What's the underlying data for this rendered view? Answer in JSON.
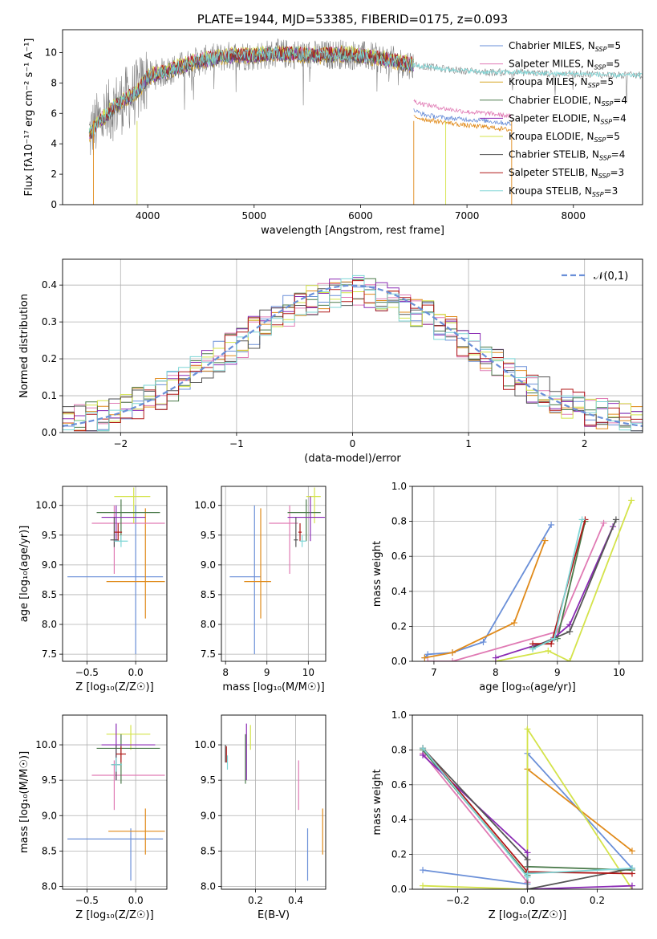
{
  "chart_data": [
    {
      "id": "spectrum",
      "type": "line",
      "title": "PLATE=1944, MJD=53385, FIBERID=0175, z=0.093",
      "xlabel": "wavelength [Angstrom, rest frame]",
      "ylabel": "Flux [fλ10⁻¹⁷ erg cm⁻² s⁻¹ A⁻¹]",
      "xlim": [
        3200,
        8650
      ],
      "ylim": [
        0,
        11.5
      ],
      "xticks": [
        4000,
        5000,
        6000,
        7000,
        8000
      ],
      "yticks": [
        0,
        2,
        4,
        6,
        8,
        10
      ],
      "grid": false,
      "legend_position": "top-right",
      "observed_color": "#808080",
      "legend": [
        {
          "label": "Chabrier MILES, N",
          "sub": "SSP",
          "suffix": "=5",
          "color": "#6a8fd8"
        },
        {
          "label": "Salpeter MILES, N",
          "sub": "SSP",
          "suffix": "=5",
          "color": "#e07ab4"
        },
        {
          "label": "Kroupa MILES, N",
          "sub": "SSP",
          "suffix": "=5",
          "color": "#d7a72a"
        },
        {
          "label": "Chabrier ELODIE, N",
          "sub": "SSP",
          "suffix": "=4",
          "color": "#4a7a4a"
        },
        {
          "label": "Salpeter ELODIE, N",
          "sub": "SSP",
          "suffix": "=4",
          "color": "#8a2ab4"
        },
        {
          "label": "Kroupa ELODIE, N",
          "sub": "SSP",
          "suffix": "=5",
          "color": "#d4e34a"
        },
        {
          "label": "Chabrier STELIB, N",
          "sub": "SSP",
          "suffix": "=4",
          "color": "#555555"
        },
        {
          "label": "Salpeter STELIB, N",
          "sub": "SSP",
          "suffix": "=3",
          "color": "#b01818"
        },
        {
          "label": "Kroupa STELIB, N",
          "sub": "SSP",
          "suffix": "=3",
          "color": "#7ed6d6"
        }
      ],
      "model_continuum": {
        "x": [
          3450,
          3550,
          3700,
          3900,
          4000,
          4200,
          4400,
          4600,
          4800,
          5000,
          5200,
          5400,
          5600,
          5800,
          6000,
          6200,
          6400,
          6500
        ],
        "y": [
          4.6,
          5.5,
          6.5,
          7.4,
          8.4,
          8.8,
          9.3,
          9.6,
          9.8,
          9.8,
          9.9,
          9.9,
          9.8,
          9.9,
          9.8,
          9.6,
          9.3,
          9.2
        ]
      },
      "model_red_tails": [
        {
          "name": "Chabrier MILES",
          "color": "#6a8fd8",
          "x": [
            6500,
            6600,
            6800,
            7000,
            7200,
            7420
          ],
          "y": [
            6.2,
            5.9,
            5.7,
            5.6,
            5.5,
            5.3
          ]
        },
        {
          "name": "Salpeter MILES",
          "color": "#e07ab4",
          "x": [
            6500,
            6600,
            6800,
            7000,
            7200,
            7420
          ],
          "y": [
            6.8,
            6.6,
            6.3,
            6.1,
            6.0,
            5.8
          ]
        },
        {
          "name": "Kroupa MILES",
          "color": "#e08a1a",
          "x": [
            6500,
            6600,
            6800,
            7000,
            7200,
            7420
          ],
          "y": [
            5.8,
            5.6,
            5.4,
            5.2,
            5.1,
            4.9
          ]
        },
        {
          "name": "STELIB / ELODIE",
          "color": "#7ed6d6",
          "x": [
            6500,
            6800,
            7000,
            7200,
            7500,
            7800,
            8100,
            8400,
            8650
          ],
          "y": [
            9.2,
            8.9,
            8.8,
            8.7,
            8.7,
            8.6,
            8.6,
            8.5,
            8.5
          ]
        }
      ]
    },
    {
      "id": "residuals",
      "type": "histogram",
      "xlabel": "(data-model)/error",
      "ylabel": "Normed distribution",
      "xlim": [
        -2.5,
        2.5
      ],
      "ylim": [
        0,
        0.47
      ],
      "xticks": [
        -2,
        -1,
        0,
        1,
        2
      ],
      "yticks": [
        0.0,
        0.1,
        0.2,
        0.3,
        0.4
      ],
      "grid": true,
      "legend_position": "top-right",
      "reference": {
        "label": "𝒩(0,1)",
        "color": "#6a8fd8",
        "style": "dashed"
      },
      "bin_width": 0.1,
      "series_colors": [
        "#6a8fd8",
        "#e07ab4",
        "#e08a1a",
        "#4a7a4a",
        "#8a2ab4",
        "#d4e34a",
        "#555555",
        "#b01818",
        "#7ed6d6"
      ]
    },
    {
      "id": "age-vs-z",
      "type": "scatter",
      "xlabel": "Z [log₁₀(Z/Z☉)]",
      "ylabel": "age  [log₁₀(age/yr)]",
      "xlim": [
        -0.75,
        0.32
      ],
      "ylim": [
        7.38,
        10.32
      ],
      "xticks": [
        -0.5,
        0.0
      ],
      "yticks": [
        7.5,
        8.0,
        8.5,
        9.0,
        9.5,
        10.0
      ],
      "grid": true,
      "points": [
        {
          "color": "#6a8fd8",
          "x": 0.0,
          "y": 8.8,
          "xlo": -0.7,
          "xhi": 0.28,
          "ylo": 7.5,
          "yhi": 10.0
        },
        {
          "color": "#e08a1a",
          "x": 0.1,
          "y": 8.72,
          "xlo": -0.3,
          "xhi": 0.3,
          "ylo": 8.1,
          "yhi": 9.95
        },
        {
          "color": "#e07ab4",
          "x": -0.22,
          "y": 9.7,
          "xlo": -0.45,
          "xhi": 0.3,
          "ylo": 8.85,
          "yhi": 10.0
        },
        {
          "color": "#d4e34a",
          "x": -0.02,
          "y": 10.15,
          "xlo": -0.22,
          "xhi": 0.15,
          "ylo": 9.7,
          "yhi": 10.3
        },
        {
          "color": "#4a7a4a",
          "x": -0.15,
          "y": 9.88,
          "xlo": -0.4,
          "xhi": 0.25,
          "ylo": 9.4,
          "yhi": 10.1
        },
        {
          "color": "#8a2ab4",
          "x": -0.2,
          "y": 9.8,
          "xlo": -0.35,
          "xhi": 0.1,
          "ylo": 9.4,
          "yhi": 10.0
        },
        {
          "color": "#555555",
          "x": -0.22,
          "y": 9.42,
          "xlo": -0.26,
          "xhi": -0.18,
          "ylo": 9.3,
          "yhi": 9.8
        },
        {
          "color": "#b01818",
          "x": -0.18,
          "y": 9.55,
          "xlo": -0.22,
          "xhi": -0.14,
          "ylo": 9.4,
          "yhi": 9.7
        },
        {
          "color": "#7ed6d6",
          "x": -0.15,
          "y": 9.4,
          "xlo": -0.22,
          "xhi": -0.08,
          "ylo": 9.3,
          "yhi": 9.5
        }
      ]
    },
    {
      "id": "age-vs-mass",
      "type": "scatter",
      "xlabel": "mass [log₁₀(M/M☉)]",
      "ylabel": "",
      "xlim": [
        7.9,
        10.42
      ],
      "ylim": [
        7.38,
        10.32
      ],
      "xticks": [
        8,
        9,
        10
      ],
      "yticks": [
        7.5,
        8.0,
        8.5,
        9.0,
        9.5,
        10.0
      ],
      "grid": true,
      "points": [
        {
          "color": "#6a8fd8",
          "x": 8.7,
          "y": 8.8,
          "xlo": 8.1,
          "xhi": 8.85,
          "ylo": 7.5,
          "yhi": 10.0
        },
        {
          "color": "#e08a1a",
          "x": 8.85,
          "y": 8.72,
          "xlo": 8.45,
          "xhi": 9.1,
          "ylo": 8.1,
          "yhi": 9.95
        },
        {
          "color": "#e07ab4",
          "x": 9.55,
          "y": 9.7,
          "xlo": 9.05,
          "xhi": 9.75,
          "ylo": 8.85,
          "yhi": 10.0
        },
        {
          "color": "#d4e34a",
          "x": 10.15,
          "y": 10.15,
          "xlo": 9.95,
          "xhi": 10.3,
          "ylo": 9.7,
          "yhi": 10.3
        },
        {
          "color": "#4a7a4a",
          "x": 9.95,
          "y": 9.88,
          "xlo": 9.5,
          "xhi": 10.3,
          "ylo": 9.4,
          "yhi": 10.1
        },
        {
          "color": "#8a2ab4",
          "x": 10.05,
          "y": 9.8,
          "xlo": 9.5,
          "xhi": 10.4,
          "ylo": 9.4,
          "yhi": 10.15
        },
        {
          "color": "#555555",
          "x": 9.7,
          "y": 9.42,
          "xlo": 9.65,
          "xhi": 9.75,
          "ylo": 9.3,
          "yhi": 9.8
        },
        {
          "color": "#b01818",
          "x": 9.8,
          "y": 9.55,
          "xlo": 9.76,
          "xhi": 9.84,
          "ylo": 9.4,
          "yhi": 9.7
        },
        {
          "color": "#7ed6d6",
          "x": 9.85,
          "y": 9.4,
          "xlo": 9.8,
          "xhi": 9.95,
          "ylo": 9.3,
          "yhi": 9.5
        }
      ]
    },
    {
      "id": "weight-vs-age",
      "type": "line",
      "xlabel": "age  [log₁₀(age/yr)]",
      "ylabel": "mass weight",
      "xlim": [
        6.65,
        10.38
      ],
      "ylim": [
        0,
        1.0
      ],
      "xticks": [
        7,
        8,
        9,
        10
      ],
      "yticks": [
        0.0,
        0.2,
        0.4,
        0.6,
        0.8,
        1.0
      ],
      "grid": true,
      "series": [
        {
          "color": "#6a8fd8",
          "x": [
            6.85,
            6.9,
            7.3,
            7.8,
            8.9
          ],
          "y": [
            0.02,
            0.04,
            0.05,
            0.11,
            0.78
          ]
        },
        {
          "color": "#e08a1a",
          "x": [
            6.85,
            7.3,
            8.3,
            8.8
          ],
          "y": [
            0.02,
            0.05,
            0.22,
            0.69
          ]
        },
        {
          "color": "#e07ab4",
          "x": [
            6.9,
            7.3,
            9.0,
            9.75
          ],
          "y": [
            0.0,
            0.0,
            0.17,
            0.79
          ]
        },
        {
          "color": "#d4e34a",
          "x": [
            8.0,
            8.85,
            9.2,
            10.2
          ],
          "y": [
            0.0,
            0.06,
            0.0,
            0.92
          ]
        },
        {
          "color": "#4a7a4a",
          "x": [
            8.6,
            9.0,
            9.45
          ],
          "y": [
            0.08,
            0.13,
            0.8
          ]
        },
        {
          "color": "#8a2ab4",
          "x": [
            8.0,
            8.9,
            9.2,
            9.9
          ],
          "y": [
            0.02,
            0.12,
            0.21,
            0.77
          ]
        },
        {
          "color": "#555555",
          "x": [
            8.6,
            9.2,
            9.95
          ],
          "y": [
            0.08,
            0.17,
            0.81
          ]
        },
        {
          "color": "#b01818",
          "x": [
            8.6,
            8.9,
            9.45
          ],
          "y": [
            0.1,
            0.1,
            0.81
          ]
        },
        {
          "color": "#7ed6d6",
          "x": [
            8.6,
            8.95,
            9.4
          ],
          "y": [
            0.07,
            0.13,
            0.81
          ]
        }
      ]
    },
    {
      "id": "mass-vs-z",
      "type": "scatter",
      "xlabel": "Z [log₁₀(Z/Z☉)]",
      "ylabel": "mass [log₁₀(M/M☉)]",
      "xlim": [
        -0.75,
        0.32
      ],
      "ylim": [
        7.96,
        10.42
      ],
      "xticks": [
        -0.5,
        0.0
      ],
      "yticks": [
        8.0,
        8.5,
        9.0,
        9.5,
        10.0
      ],
      "grid": true,
      "points": [
        {
          "color": "#6a8fd8",
          "x": -0.05,
          "y": 8.67,
          "xlo": -0.7,
          "xhi": 0.28,
          "ylo": 8.08,
          "yhi": 8.82
        },
        {
          "color": "#e08a1a",
          "x": 0.1,
          "y": 8.78,
          "xlo": -0.28,
          "xhi": 0.3,
          "ylo": 8.45,
          "yhi": 9.1
        },
        {
          "color": "#e07ab4",
          "x": -0.22,
          "y": 9.57,
          "xlo": -0.45,
          "xhi": 0.3,
          "ylo": 9.08,
          "yhi": 9.78
        },
        {
          "color": "#d4e34a",
          "x": -0.05,
          "y": 10.15,
          "xlo": -0.3,
          "xhi": 0.15,
          "ylo": 9.93,
          "yhi": 10.28
        },
        {
          "color": "#4a7a4a",
          "x": -0.15,
          "y": 9.95,
          "xlo": -0.4,
          "xhi": 0.25,
          "ylo": 9.45,
          "yhi": 10.15
        },
        {
          "color": "#8a2ab4",
          "x": -0.2,
          "y": 10.0,
          "xlo": -0.35,
          "xhi": 0.2,
          "ylo": 9.5,
          "yhi": 10.3
        },
        {
          "color": "#555555",
          "x": -0.2,
          "y": 9.72,
          "xlo": -0.25,
          "xhi": -0.15,
          "ylo": 9.5,
          "yhi": 10.0
        },
        {
          "color": "#b01818",
          "x": -0.15,
          "y": 9.87,
          "xlo": -0.2,
          "xhi": -0.1,
          "ylo": 9.75,
          "yhi": 9.98
        },
        {
          "color": "#7ed6d6",
          "x": -0.2,
          "y": 9.72,
          "xlo": -0.25,
          "xhi": -0.14,
          "ylo": 9.62,
          "yhi": 9.82
        }
      ]
    },
    {
      "id": "mass-vs-ebv",
      "type": "scatter",
      "xlabel": "E(B-V)",
      "ylabel": "",
      "xlim": [
        0.03,
        0.55
      ],
      "ylim": [
        7.96,
        10.42
      ],
      "xticks": [
        0.2,
        0.4
      ],
      "yticks": [
        8.0,
        8.5,
        9.0,
        9.5,
        10.0
      ],
      "grid": true,
      "points": [
        {
          "color": "#6a8fd8",
          "x": 0.46,
          "y": 8.45,
          "ylo": 8.08,
          "yhi": 8.82
        },
        {
          "color": "#e08a1a",
          "x": 0.535,
          "y": 8.78,
          "ylo": 8.45,
          "yhi": 9.1
        },
        {
          "color": "#e07ab4",
          "x": 0.415,
          "y": 9.42,
          "ylo": 9.08,
          "yhi": 9.78
        },
        {
          "color": "#d4e34a",
          "x": 0.175,
          "y": 10.1,
          "ylo": 9.93,
          "yhi": 10.28
        },
        {
          "color": "#4a7a4a",
          "x": 0.15,
          "y": 9.8,
          "ylo": 9.45,
          "yhi": 10.15
        },
        {
          "color": "#8a2ab4",
          "x": 0.155,
          "y": 9.9,
          "ylo": 9.5,
          "yhi": 10.3
        },
        {
          "color": "#555555",
          "x": 0.05,
          "y": 9.88,
          "ylo": 9.75,
          "yhi": 10.0
        },
        {
          "color": "#b01818",
          "x": 0.055,
          "y": 9.87,
          "ylo": 9.75,
          "yhi": 9.98
        },
        {
          "color": "#7ed6d6",
          "x": 0.06,
          "y": 9.75,
          "ylo": 9.65,
          "yhi": 9.85
        }
      ]
    },
    {
      "id": "weight-vs-z",
      "type": "line",
      "xlabel": "Z [log₁₀(Z/Z☉)]",
      "ylabel": "mass weight",
      "xlim": [
        -0.33,
        0.33
      ],
      "ylim": [
        0,
        1.0
      ],
      "xticks": [
        -0.2,
        0.0,
        0.2
      ],
      "yticks": [
        0.0,
        0.2,
        0.4,
        0.6,
        0.8,
        1.0
      ],
      "grid": true,
      "series": [
        {
          "color": "#6a8fd8",
          "x": [
            -0.3,
            0.0,
            0.0,
            0.3
          ],
          "y": [
            0.11,
            0.03,
            0.78,
            0.12
          ]
        },
        {
          "color": "#e08a1a",
          "x": [
            0.0,
            0.3
          ],
          "y": [
            0.69,
            0.22
          ]
        },
        {
          "color": "#e07ab4",
          "x": [
            -0.3,
            0.0,
            0.0
          ],
          "y": [
            0.78,
            0.04,
            0.17
          ]
        },
        {
          "color": "#d4e34a",
          "x": [
            -0.3,
            0.0,
            0.0,
            0.3
          ],
          "y": [
            0.02,
            0.0,
            0.92,
            0.0
          ]
        },
        {
          "color": "#4a7a4a",
          "x": [
            -0.3,
            0.0,
            0.0,
            0.3
          ],
          "y": [
            0.8,
            0.08,
            0.13,
            0.11
          ]
        },
        {
          "color": "#8a2ab4",
          "x": [
            -0.3,
            0.0,
            0.0,
            0.3
          ],
          "y": [
            0.77,
            0.21,
            0.0,
            0.02
          ]
        },
        {
          "color": "#555555",
          "x": [
            -0.3,
            0.0,
            0.0,
            0.3
          ],
          "y": [
            0.81,
            0.17,
            0.0,
            0.12
          ]
        },
        {
          "color": "#b01818",
          "x": [
            -0.3,
            0.0,
            0.0,
            0.3
          ],
          "y": [
            0.81,
            0.1,
            0.1,
            0.09
          ]
        },
        {
          "color": "#7ed6d6",
          "x": [
            -0.3,
            0.0,
            0.0,
            0.3
          ],
          "y": [
            0.81,
            0.07,
            0.09,
            0.12
          ]
        }
      ]
    }
  ]
}
